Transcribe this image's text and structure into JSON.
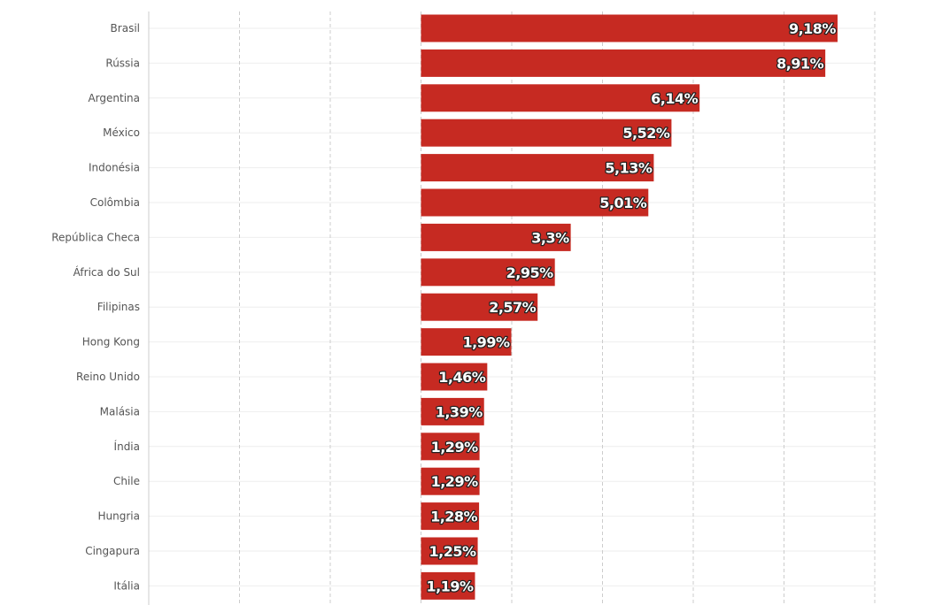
{
  "chart_data": {
    "type": "bar",
    "orientation": "horizontal",
    "categories": [
      "Brasil",
      "Rússia",
      "Argentina",
      "México",
      "Indonésia",
      "Colômbia",
      "República Checa",
      "África do Sul",
      "Filipinas",
      "Hong Kong",
      "Reino Unido",
      "Malásia",
      "Índia",
      "Chile",
      "Hungria",
      "Cingapura",
      "Itália"
    ],
    "values": [
      9.18,
      8.91,
      6.14,
      5.52,
      5.13,
      5.01,
      3.3,
      2.95,
      2.57,
      1.99,
      1.46,
      1.39,
      1.29,
      1.29,
      1.28,
      1.25,
      1.19
    ],
    "value_labels": [
      "9,18%",
      "8,91%",
      "6,14%",
      "5,52%",
      "5,13%",
      "5,01%",
      "3,3%",
      "2,95%",
      "2,57%",
      "1,99%",
      "1,46%",
      "1,39%",
      "1,29%",
      "1,29%",
      "1,28%",
      "1,25%",
      "1,19%"
    ],
    "xlim": [
      -6,
      10
    ],
    "grid_x_step": 2,
    "grid": true,
    "bar_color": "#c62a22",
    "grid_color": "#cccccc",
    "label_color": "#555555"
  }
}
